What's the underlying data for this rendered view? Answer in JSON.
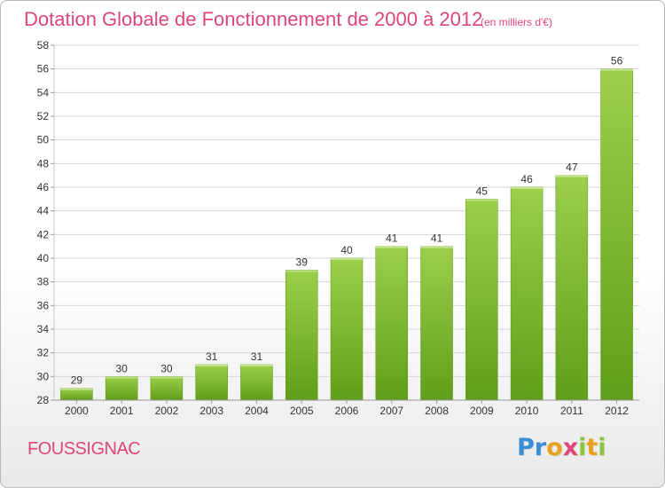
{
  "header": {
    "title": "Dotation Globale de Fonctionnement de 2000 à 2012",
    "unit": "(en milliers d'€)"
  },
  "footer": {
    "place": "FOUSSIGNAC",
    "logo": {
      "letters": [
        "P",
        "r",
        "o",
        "x",
        "i",
        "t",
        "i"
      ],
      "colors": [
        "#3a8ed6",
        "#3a8ed6",
        "#e9a21f",
        "#e0457b",
        "#8cc63f",
        "#e9a21f",
        "#8cc63f"
      ]
    }
  },
  "chart_data": {
    "type": "bar",
    "categories": [
      "2000",
      "2001",
      "2002",
      "2003",
      "2004",
      "2005",
      "2006",
      "2007",
      "2008",
      "2009",
      "2010",
      "2011",
      "2012"
    ],
    "values": [
      29,
      30,
      30,
      31,
      31,
      39,
      40,
      41,
      41,
      45,
      46,
      47,
      56
    ],
    "data_labels": [
      "29",
      "30",
      "30",
      "31",
      "31",
      "39",
      "40",
      "41",
      "41",
      "45",
      "46",
      "47",
      "56"
    ],
    "ylim": [
      28,
      58
    ],
    "yticks": [
      28,
      30,
      32,
      34,
      36,
      38,
      40,
      42,
      44,
      46,
      48,
      50,
      52,
      54,
      56,
      58
    ],
    "grid": true,
    "bar_color": "#7dbb2f"
  }
}
